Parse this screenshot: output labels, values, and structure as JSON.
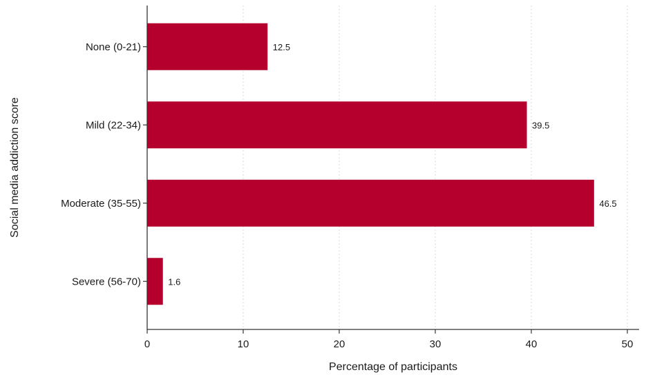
{
  "chart_data": {
    "type": "bar",
    "orientation": "horizontal",
    "title": "",
    "xlabel": "Percentage of participants",
    "ylabel": "Social media addiction score",
    "categories": [
      "None (0-21)",
      "Mild (22-34)",
      "Moderate (35-55)",
      "Severe (56-70)"
    ],
    "values": [
      12.5,
      39.5,
      46.5,
      1.6
    ],
    "value_labels": [
      "12.5",
      "39.5",
      "46.5",
      "1.6"
    ],
    "xlim": [
      0,
      50
    ],
    "x_ticks": [
      0,
      10,
      20,
      30,
      40,
      50
    ],
    "x_tick_labels": [
      "0",
      "10",
      "20",
      "30",
      "40",
      "50"
    ],
    "grid": "vertical dashed",
    "legend": "none",
    "bar_color": "#b5002e"
  }
}
